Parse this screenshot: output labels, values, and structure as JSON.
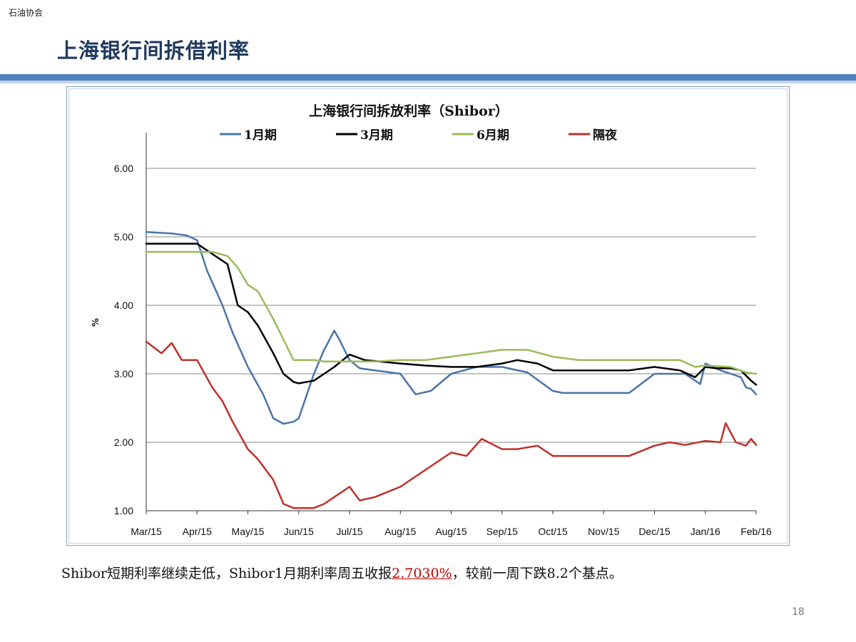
{
  "header": {
    "org": "石油协会",
    "title": "上海银行间拆借利率"
  },
  "caption": {
    "part1": "Shibor短期利率继续走低，Shibor1月期利率周五收报",
    "highlight": "2.7030%",
    "part2": "，较前一周下跌8.2个基点。"
  },
  "page_number": "18",
  "chart_data": {
    "type": "line",
    "title": "上海银行间拆放利率（Shibor）",
    "ylabel": "%",
    "xlabel": "",
    "ylim": [
      1.0,
      6.0
    ],
    "yticks": [
      "1.00",
      "2.00",
      "3.00",
      "4.00",
      "5.00",
      "6.00"
    ],
    "x_tick_labels": [
      "Mar/15",
      "Apr/15",
      "May/15",
      "Jun/15",
      "Jul/15",
      "Aug/15",
      "Aug/15",
      "Sep/15",
      "Oct/15",
      "Nov/15",
      "Dec/15",
      "Jan/16",
      "Feb/16"
    ],
    "x_range": [
      0,
      12
    ],
    "grid": true,
    "legend_position": "top",
    "series": [
      {
        "name": "1月期",
        "color": "#4a74a8",
        "x": [
          0,
          0.5,
          0.8,
          1.0,
          1.2,
          1.5,
          1.7,
          2.0,
          2.3,
          2.5,
          2.7,
          2.9,
          3.0,
          3.3,
          3.5,
          3.7,
          3.8,
          4.0,
          4.2,
          4.5,
          5.0,
          5.3,
          5.6,
          6.0,
          6.5,
          7.0,
          7.5,
          8.0,
          8.2,
          8.5,
          9.0,
          9.5,
          10.0,
          10.3,
          10.6,
          10.9,
          11.0,
          11.3,
          11.5,
          11.7,
          11.8,
          11.9,
          12.0
        ],
        "y": [
          5.07,
          5.05,
          5.02,
          4.95,
          4.5,
          4.0,
          3.6,
          3.1,
          2.7,
          2.35,
          2.27,
          2.3,
          2.35,
          3.0,
          3.35,
          3.63,
          3.5,
          3.2,
          3.08,
          3.05,
          3.0,
          2.7,
          2.75,
          3.0,
          3.1,
          3.1,
          3.02,
          2.75,
          2.72,
          2.72,
          2.72,
          2.72,
          3.0,
          3.0,
          3.0,
          2.85,
          3.15,
          3.05,
          3.0,
          2.95,
          2.8,
          2.78,
          2.7
        ]
      },
      {
        "name": "3月期",
        "color": "#000000",
        "x": [
          0,
          0.5,
          1.0,
          1.3,
          1.6,
          1.8,
          2.0,
          2.2,
          2.5,
          2.7,
          2.9,
          3.0,
          3.3,
          3.5,
          3.7,
          4.0,
          4.3,
          5.0,
          5.5,
          6.0,
          6.5,
          7.0,
          7.3,
          7.7,
          8.0,
          8.5,
          9.0,
          9.5,
          10.0,
          10.5,
          10.8,
          11.0,
          11.2,
          11.5,
          11.7,
          11.9,
          12.0
        ],
        "y": [
          4.9,
          4.9,
          4.9,
          4.75,
          4.6,
          4.0,
          3.9,
          3.7,
          3.3,
          3.0,
          2.88,
          2.86,
          2.9,
          3.0,
          3.1,
          3.28,
          3.2,
          3.15,
          3.12,
          3.1,
          3.1,
          3.15,
          3.2,
          3.15,
          3.05,
          3.05,
          3.05,
          3.05,
          3.1,
          3.05,
          2.95,
          3.1,
          3.08,
          3.08,
          3.05,
          2.9,
          2.84
        ]
      },
      {
        "name": "6月期",
        "color": "#9bbb59",
        "x": [
          0,
          0.5,
          1.0,
          1.3,
          1.6,
          1.8,
          2.0,
          2.2,
          2.5,
          2.7,
          2.9,
          3.0,
          3.3,
          3.5,
          4.0,
          4.5,
          5.0,
          5.5,
          6.0,
          6.5,
          7.0,
          7.5,
          8.0,
          8.5,
          9.0,
          9.5,
          10.0,
          10.5,
          10.8,
          11.0,
          11.5,
          11.8,
          12.0
        ],
        "y": [
          4.78,
          4.78,
          4.78,
          4.78,
          4.72,
          4.55,
          4.3,
          4.2,
          3.8,
          3.5,
          3.2,
          3.2,
          3.2,
          3.18,
          3.18,
          3.18,
          3.2,
          3.2,
          3.25,
          3.3,
          3.35,
          3.35,
          3.25,
          3.2,
          3.2,
          3.2,
          3.2,
          3.2,
          3.1,
          3.12,
          3.1,
          3.02,
          3.0
        ]
      },
      {
        "name": "隔夜",
        "color": "#c0302a",
        "x": [
          0,
          0.3,
          0.5,
          0.7,
          1.0,
          1.3,
          1.5,
          1.7,
          2.0,
          2.2,
          2.5,
          2.7,
          2.9,
          3.0,
          3.3,
          3.5,
          3.7,
          4.0,
          4.2,
          4.5,
          5.0,
          5.3,
          5.6,
          6.0,
          6.3,
          6.6,
          7.0,
          7.3,
          7.7,
          8.0,
          8.5,
          9.0,
          9.5,
          10.0,
          10.3,
          10.6,
          11.0,
          11.3,
          11.4,
          11.6,
          11.8,
          11.9,
          12.0
        ],
        "y": [
          3.47,
          3.3,
          3.45,
          3.2,
          3.2,
          2.8,
          2.6,
          2.3,
          1.9,
          1.75,
          1.45,
          1.1,
          1.04,
          1.04,
          1.04,
          1.1,
          1.2,
          1.35,
          1.15,
          1.2,
          1.35,
          1.5,
          1.65,
          1.85,
          1.8,
          2.05,
          1.9,
          1.9,
          1.95,
          1.8,
          1.8,
          1.8,
          1.8,
          1.95,
          2.0,
          1.96,
          2.02,
          2.0,
          2.28,
          2.0,
          1.95,
          2.05,
          1.96
        ]
      }
    ]
  }
}
